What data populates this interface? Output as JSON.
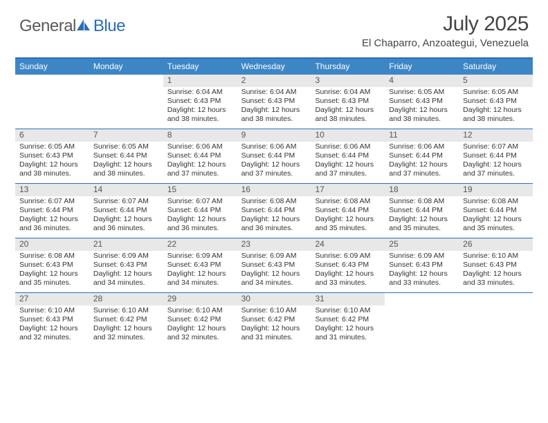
{
  "brand": {
    "general": "General",
    "blue": "Blue"
  },
  "title": "July 2025",
  "location": "El Chaparro, Anzoategui, Venezuela",
  "colors": {
    "header_bg": "#3d86c6",
    "header_text": "#ffffff",
    "rule": "#2a6db8",
    "daynum_bg": "#e8e8e8",
    "body_text": "#333333",
    "logo_gray": "#5a5a5a",
    "logo_blue": "#2a6db8"
  },
  "typography": {
    "title_fontsize": 30,
    "location_fontsize": 15,
    "dayheader_fontsize": 12,
    "cell_fontsize": 10.5
  },
  "day_headers": [
    "Sunday",
    "Monday",
    "Tuesday",
    "Wednesday",
    "Thursday",
    "Friday",
    "Saturday"
  ],
  "weeks": [
    [
      {
        "num": "",
        "sunrise": "",
        "sunset": "",
        "daylight": ""
      },
      {
        "num": "",
        "sunrise": "",
        "sunset": "",
        "daylight": ""
      },
      {
        "num": "1",
        "sunrise": "Sunrise: 6:04 AM",
        "sunset": "Sunset: 6:43 PM",
        "daylight": "Daylight: 12 hours and 38 minutes."
      },
      {
        "num": "2",
        "sunrise": "Sunrise: 6:04 AM",
        "sunset": "Sunset: 6:43 PM",
        "daylight": "Daylight: 12 hours and 38 minutes."
      },
      {
        "num": "3",
        "sunrise": "Sunrise: 6:04 AM",
        "sunset": "Sunset: 6:43 PM",
        "daylight": "Daylight: 12 hours and 38 minutes."
      },
      {
        "num": "4",
        "sunrise": "Sunrise: 6:05 AM",
        "sunset": "Sunset: 6:43 PM",
        "daylight": "Daylight: 12 hours and 38 minutes."
      },
      {
        "num": "5",
        "sunrise": "Sunrise: 6:05 AM",
        "sunset": "Sunset: 6:43 PM",
        "daylight": "Daylight: 12 hours and 38 minutes."
      }
    ],
    [
      {
        "num": "6",
        "sunrise": "Sunrise: 6:05 AM",
        "sunset": "Sunset: 6:43 PM",
        "daylight": "Daylight: 12 hours and 38 minutes."
      },
      {
        "num": "7",
        "sunrise": "Sunrise: 6:05 AM",
        "sunset": "Sunset: 6:44 PM",
        "daylight": "Daylight: 12 hours and 38 minutes."
      },
      {
        "num": "8",
        "sunrise": "Sunrise: 6:06 AM",
        "sunset": "Sunset: 6:44 PM",
        "daylight": "Daylight: 12 hours and 37 minutes."
      },
      {
        "num": "9",
        "sunrise": "Sunrise: 6:06 AM",
        "sunset": "Sunset: 6:44 PM",
        "daylight": "Daylight: 12 hours and 37 minutes."
      },
      {
        "num": "10",
        "sunrise": "Sunrise: 6:06 AM",
        "sunset": "Sunset: 6:44 PM",
        "daylight": "Daylight: 12 hours and 37 minutes."
      },
      {
        "num": "11",
        "sunrise": "Sunrise: 6:06 AM",
        "sunset": "Sunset: 6:44 PM",
        "daylight": "Daylight: 12 hours and 37 minutes."
      },
      {
        "num": "12",
        "sunrise": "Sunrise: 6:07 AM",
        "sunset": "Sunset: 6:44 PM",
        "daylight": "Daylight: 12 hours and 37 minutes."
      }
    ],
    [
      {
        "num": "13",
        "sunrise": "Sunrise: 6:07 AM",
        "sunset": "Sunset: 6:44 PM",
        "daylight": "Daylight: 12 hours and 36 minutes."
      },
      {
        "num": "14",
        "sunrise": "Sunrise: 6:07 AM",
        "sunset": "Sunset: 6:44 PM",
        "daylight": "Daylight: 12 hours and 36 minutes."
      },
      {
        "num": "15",
        "sunrise": "Sunrise: 6:07 AM",
        "sunset": "Sunset: 6:44 PM",
        "daylight": "Daylight: 12 hours and 36 minutes."
      },
      {
        "num": "16",
        "sunrise": "Sunrise: 6:08 AM",
        "sunset": "Sunset: 6:44 PM",
        "daylight": "Daylight: 12 hours and 36 minutes."
      },
      {
        "num": "17",
        "sunrise": "Sunrise: 6:08 AM",
        "sunset": "Sunset: 6:44 PM",
        "daylight": "Daylight: 12 hours and 35 minutes."
      },
      {
        "num": "18",
        "sunrise": "Sunrise: 6:08 AM",
        "sunset": "Sunset: 6:44 PM",
        "daylight": "Daylight: 12 hours and 35 minutes."
      },
      {
        "num": "19",
        "sunrise": "Sunrise: 6:08 AM",
        "sunset": "Sunset: 6:44 PM",
        "daylight": "Daylight: 12 hours and 35 minutes."
      }
    ],
    [
      {
        "num": "20",
        "sunrise": "Sunrise: 6:08 AM",
        "sunset": "Sunset: 6:43 PM",
        "daylight": "Daylight: 12 hours and 35 minutes."
      },
      {
        "num": "21",
        "sunrise": "Sunrise: 6:09 AM",
        "sunset": "Sunset: 6:43 PM",
        "daylight": "Daylight: 12 hours and 34 minutes."
      },
      {
        "num": "22",
        "sunrise": "Sunrise: 6:09 AM",
        "sunset": "Sunset: 6:43 PM",
        "daylight": "Daylight: 12 hours and 34 minutes."
      },
      {
        "num": "23",
        "sunrise": "Sunrise: 6:09 AM",
        "sunset": "Sunset: 6:43 PM",
        "daylight": "Daylight: 12 hours and 34 minutes."
      },
      {
        "num": "24",
        "sunrise": "Sunrise: 6:09 AM",
        "sunset": "Sunset: 6:43 PM",
        "daylight": "Daylight: 12 hours and 33 minutes."
      },
      {
        "num": "25",
        "sunrise": "Sunrise: 6:09 AM",
        "sunset": "Sunset: 6:43 PM",
        "daylight": "Daylight: 12 hours and 33 minutes."
      },
      {
        "num": "26",
        "sunrise": "Sunrise: 6:10 AM",
        "sunset": "Sunset: 6:43 PM",
        "daylight": "Daylight: 12 hours and 33 minutes."
      }
    ],
    [
      {
        "num": "27",
        "sunrise": "Sunrise: 6:10 AM",
        "sunset": "Sunset: 6:43 PM",
        "daylight": "Daylight: 12 hours and 32 minutes."
      },
      {
        "num": "28",
        "sunrise": "Sunrise: 6:10 AM",
        "sunset": "Sunset: 6:42 PM",
        "daylight": "Daylight: 12 hours and 32 minutes."
      },
      {
        "num": "29",
        "sunrise": "Sunrise: 6:10 AM",
        "sunset": "Sunset: 6:42 PM",
        "daylight": "Daylight: 12 hours and 32 minutes."
      },
      {
        "num": "30",
        "sunrise": "Sunrise: 6:10 AM",
        "sunset": "Sunset: 6:42 PM",
        "daylight": "Daylight: 12 hours and 31 minutes."
      },
      {
        "num": "31",
        "sunrise": "Sunrise: 6:10 AM",
        "sunset": "Sunset: 6:42 PM",
        "daylight": "Daylight: 12 hours and 31 minutes."
      },
      {
        "num": "",
        "sunrise": "",
        "sunset": "",
        "daylight": ""
      },
      {
        "num": "",
        "sunrise": "",
        "sunset": "",
        "daylight": ""
      }
    ]
  ]
}
